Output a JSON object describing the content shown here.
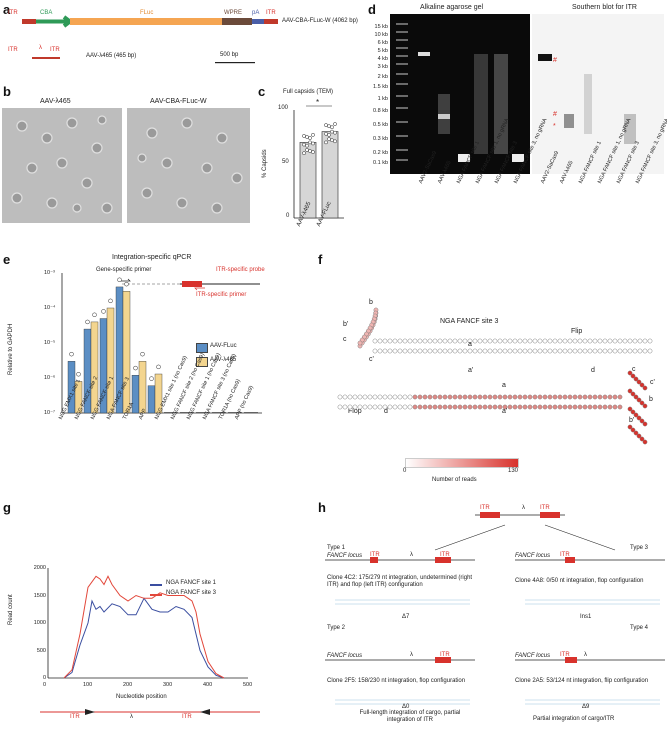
{
  "panel_labels": [
    "a",
    "b",
    "c",
    "d",
    "e",
    "f",
    "g",
    "h"
  ],
  "a": {
    "construct1": {
      "segments": [
        "ITR",
        "CBA",
        "FLuc",
        "WPRE",
        "pA",
        "ITR"
      ],
      "name": "AAV-CBA-FLuc-W (4062 bp)"
    },
    "construct2": {
      "segments": [
        "ITR",
        "λ",
        "ITR"
      ],
      "name": "AAV-λ465 (465 bp)"
    },
    "scale": "500 bp"
  },
  "b": {
    "titles": [
      "AAV-λ465",
      "AAV-CBA-FLuc-W"
    ]
  },
  "c": {
    "title": "Full capsids (TEM)",
    "ylabel": "% Capsids",
    "star": "*",
    "chart_data": {
      "type": "bar",
      "categories": [
        "AAV-λ465",
        "AAV-FLuc"
      ],
      "values": [
        70,
        80
      ],
      "ylim": [
        0,
        100
      ],
      "yticks": [
        "0",
        "50",
        "100"
      ]
    }
  },
  "d": {
    "gel_title": "Alkaline agarose gel",
    "blot_title": "Southern blot for ITR",
    "ladder": [
      "15 kb",
      "10 kb",
      "6 kb",
      "5 kb",
      "4 kb",
      "3 kb",
      "2 kb",
      "1.5 kb",
      "1 kb",
      "0.8 kb",
      "0.5 kb",
      "0.3 kb",
      "0.2 kb",
      "0.1 kb"
    ],
    "lanes": [
      "AAV2-SaCas9",
      "AAV-λ465",
      "NGA FANCF site 1",
      "NGA FANCF site 1, no gRNA",
      "NGA FANCF site 3",
      "NGA FANCF site 3, no gRNA"
    ],
    "blot_lanes": [
      "AAV2-SaCas9",
      "AAV-λ465",
      "NGA FANCF site 1",
      "NGA FANCF site 1, no gRNA",
      "NGA FANCF site 3",
      "NGA FANCF site 3, no gRNA"
    ],
    "marks": [
      "#",
      "#",
      "*"
    ]
  },
  "e": {
    "title": "Integration-specific qPCR",
    "ylabel": "Relative to GAPDH",
    "gene_primer": "Gene-specific primer",
    "itr_probe": "ITR-specific probe",
    "itr_primer": "ITR-specific primer",
    "yticks": [
      "10⁻⁷",
      "10⁻⁶",
      "10⁻⁵",
      "10⁻⁴",
      "10⁻³"
    ],
    "chart_data": {
      "type": "bar",
      "ylim": [
        1e-07,
        0.001
      ],
      "log": true,
      "categories": [
        "NGG EMX1 site 1",
        "NGG FANCF site 2",
        "NGG FANCF site 1",
        "NGA FANCF site 3",
        "TOR1A",
        "APP",
        "NGG EMX1 site 1 (no Cas9)",
        "NGG FANCF site 2 (no Cas9)",
        "NGG FANCF site 1 (no Cas9)",
        "NGA FANCF site 3 (no Cas9)",
        "TOR1A (no Cas9)",
        "APP (no Cas9)"
      ],
      "series": [
        {
          "name": "AAV-FLuc",
          "color": "#5b8ec4",
          "values": [
            3e-06,
            2.5e-05,
            5e-05,
            0.0004,
            1.2e-06,
            6e-07,
            0,
            0,
            0,
            0,
            0,
            0
          ]
        },
        {
          "name": "AAV-λ465",
          "color": "#f3d58f",
          "values": [
            8e-07,
            4e-05,
            0.0001,
            0.0003,
            3e-06,
            1.3e-06,
            0,
            0,
            0,
            0,
            0,
            0
          ]
        }
      ]
    }
  },
  "f": {
    "title": "NGA FANCF site 3",
    "flip": "Flip",
    "flop": "Flop",
    "labels_top": [
      "b",
      "b'",
      "c",
      "c'",
      "a",
      "a'",
      "d"
    ],
    "labels_bottom": [
      "a",
      "a'",
      "d",
      "c",
      "c'",
      "b",
      "b'"
    ],
    "scale_min": "0",
    "scale_max": "130",
    "scale_label": "Number of reads"
  },
  "g": {
    "ylabel": "Read count",
    "xlabel": "Nucleotide position",
    "chart_data": {
      "type": "line",
      "xlim": [
        0,
        500
      ],
      "ylim": [
        0,
        2000
      ],
      "xticks": [
        0,
        100,
        200,
        300,
        400,
        500
      ],
      "yticks": [
        0,
        500,
        1000,
        1500,
        2000
      ],
      "series": [
        {
          "name": "NGA FANCF site 1",
          "color": "#3a4ea0",
          "x": [
            40,
            60,
            80,
            100,
            110,
            120,
            130,
            140,
            160,
            180,
            200,
            220,
            240,
            260,
            280,
            300,
            320,
            340,
            360,
            380,
            400,
            420,
            440
          ],
          "y": [
            0,
            100,
            600,
            1000,
            1400,
            1250,
            1300,
            1200,
            1350,
            1300,
            1150,
            1150,
            1450,
            1250,
            1200,
            1200,
            1300,
            1250,
            1100,
            500,
            200,
            50,
            0
          ]
        },
        {
          "name": "NGA FANCF site 3",
          "color": "#e2473a",
          "x": [
            40,
            60,
            80,
            100,
            120,
            130,
            140,
            150,
            160,
            180,
            200,
            220,
            240,
            260,
            280,
            300,
            320,
            340,
            360,
            370,
            380,
            400,
            420,
            440
          ],
          "y": [
            0,
            150,
            800,
            1650,
            1850,
            1800,
            1700,
            1850,
            1700,
            1500,
            1400,
            1500,
            1450,
            1450,
            1550,
            1500,
            1500,
            1500,
            1400,
            1200,
            800,
            300,
            80,
            0
          ]
        }
      ]
    },
    "bottom_labels": [
      "ITR",
      "λ",
      "ITR"
    ]
  },
  "h": {
    "top": {
      "itr1": "ITR",
      "lambda": "λ",
      "itr2": "ITR"
    },
    "type1": {
      "title": "Type 1",
      "locus": "FANCF locus",
      "itr1": "ITR",
      "lambda": "λ",
      "itr2": "ITR",
      "clone": "Clone 4C2: 175/279 nt integration, undetermined (right ITR) and flop (left ITR) configuration",
      "delta": "Δ7"
    },
    "type2": {
      "title": "Type 2",
      "locus": "FANCF locus",
      "lambda": "λ",
      "itr": "ITR",
      "clone": "Clone 2F5: 158/230 nt integration, flop configuration",
      "delta": "Δ0"
    },
    "type3": {
      "title": "Type 3",
      "locus": "FANCF locus",
      "itr": "ITR",
      "clone": "Clone 4A8: 0/50 nt integration, flop configuration",
      "delta": "Ins1"
    },
    "type4": {
      "title": "Type 4",
      "locus": "FANCF locus",
      "itr": "ITR",
      "lambda": "λ",
      "clone": "Clone 2A5: 53/124 nt integration, flip configuration",
      "delta": "Δ9"
    },
    "caption_left": "Full-length integration of cargo, partial integration of ITR",
    "caption_right": "Partial integration of cargo/ITR"
  }
}
